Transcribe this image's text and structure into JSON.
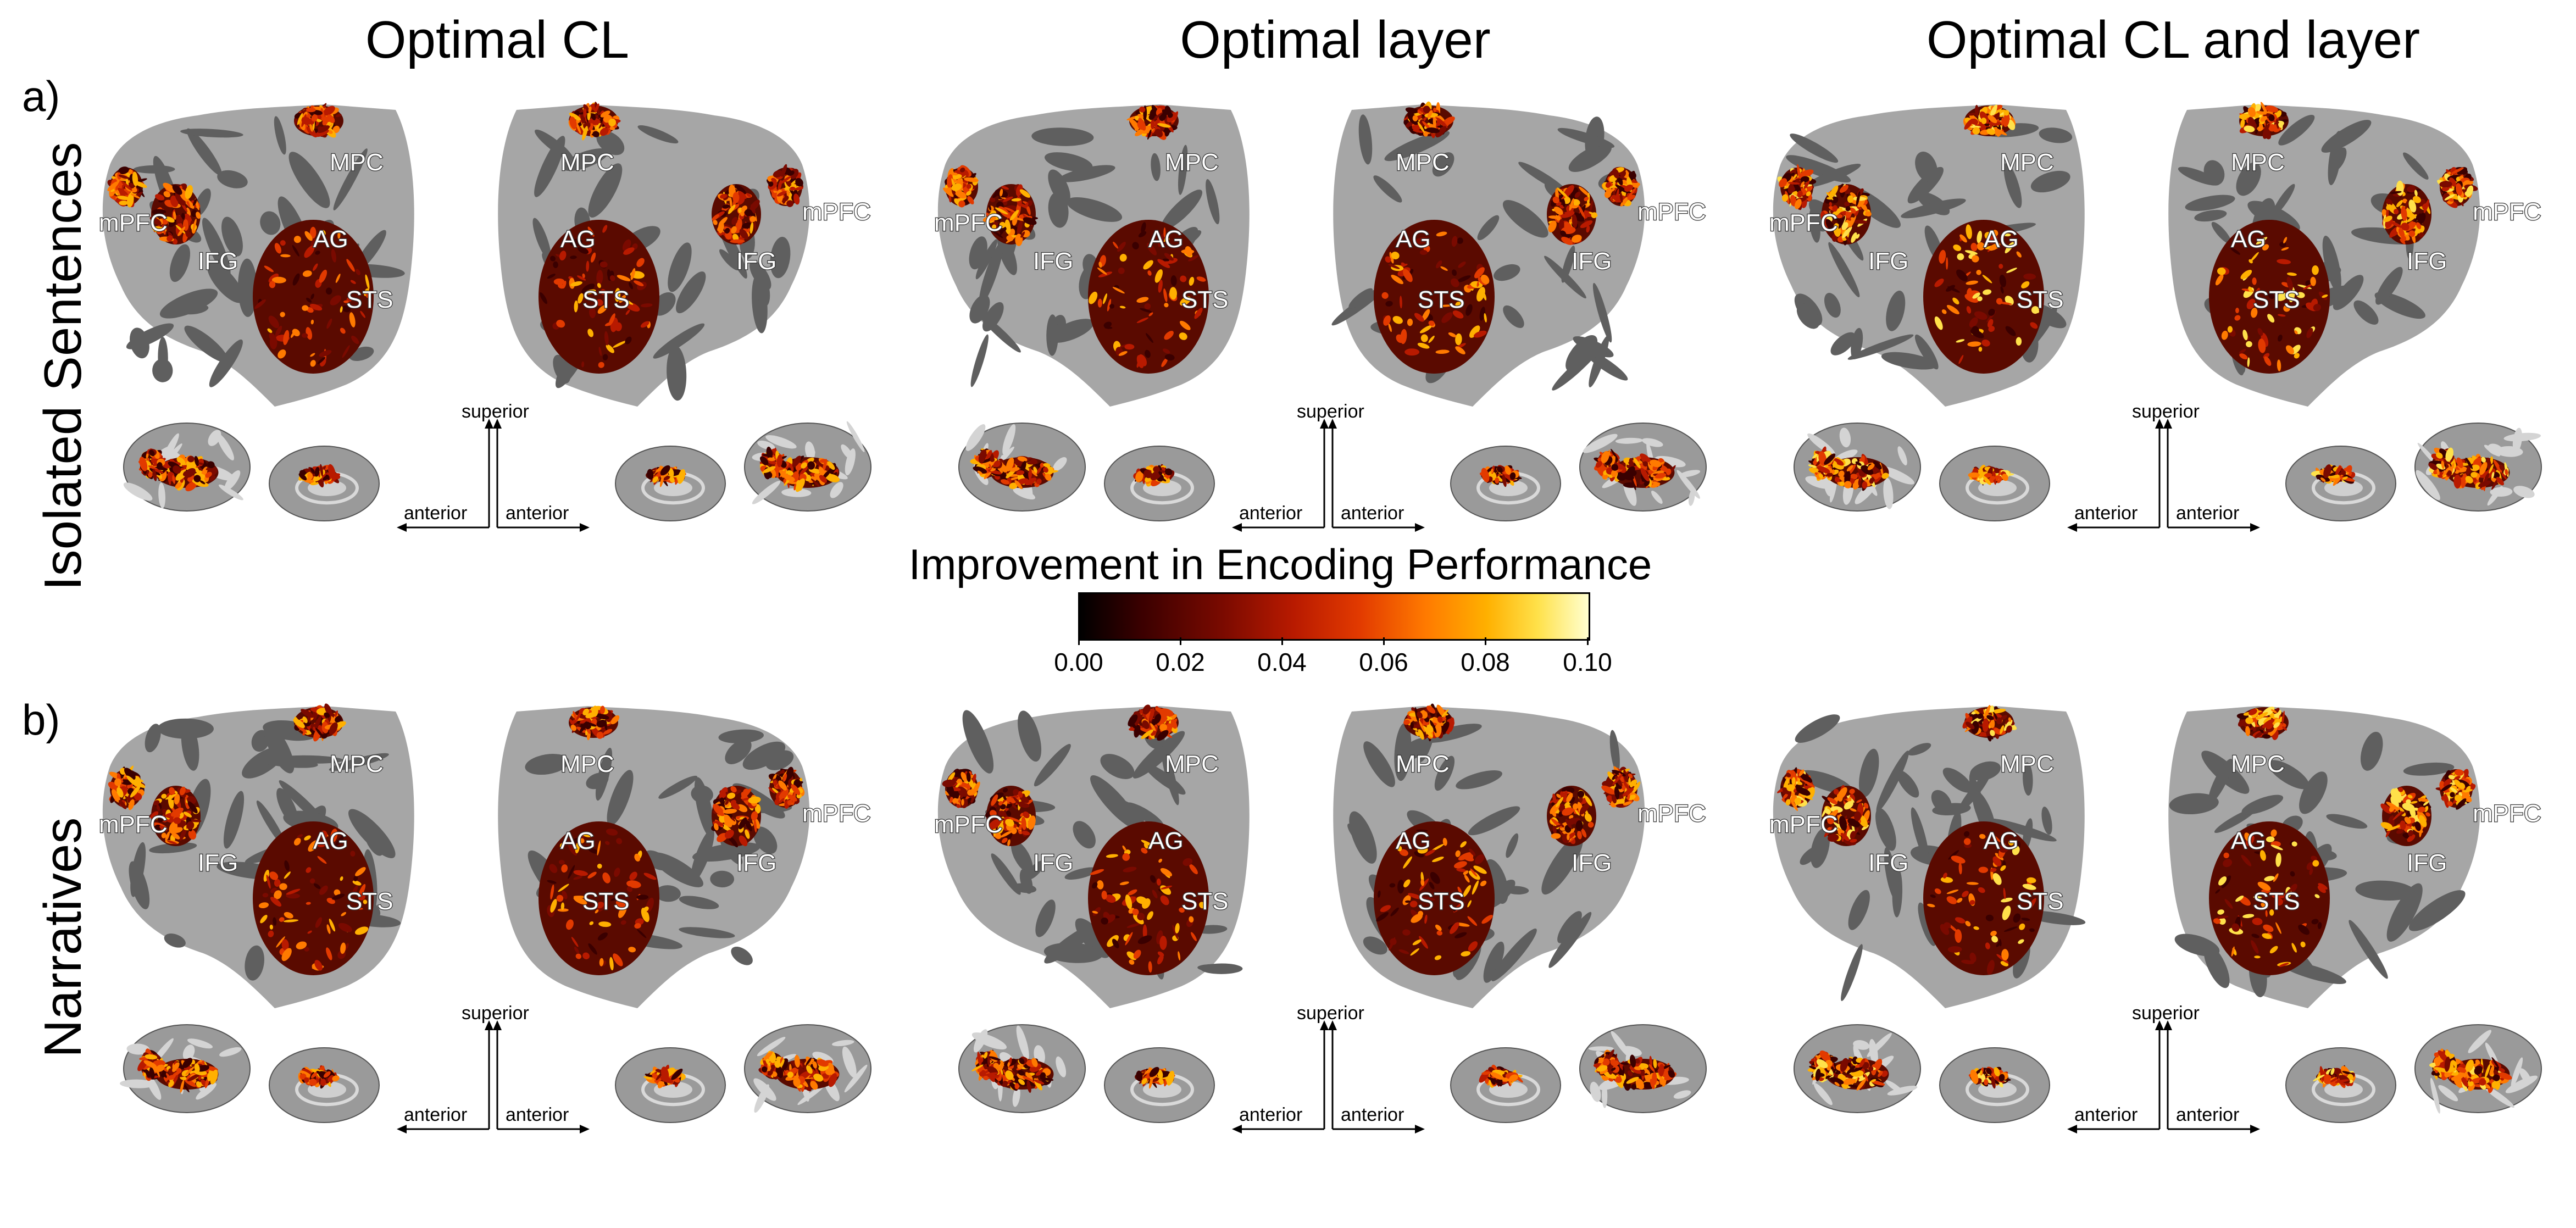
{
  "columns": [
    "Optimal CL",
    "Optimal layer",
    "Optimal CL and layer"
  ],
  "rows": [
    {
      "letter": "a)",
      "label": "Isolated Sentences"
    },
    {
      "letter": "b)",
      "label": "Narratives"
    }
  ],
  "roi_labels": {
    "mpc": "MPC",
    "mpfc": "mPFC",
    "ifg": "IFG",
    "ag": "AG",
    "sts": "STS"
  },
  "orientation": {
    "superior": "superior",
    "anterior": "anterior"
  },
  "colorbar": {
    "title": "Improvement in Encoding Performance (r)",
    "ticks": [
      "0.00",
      "0.02",
      "0.04",
      "0.06",
      "0.08",
      "0.10"
    ],
    "colormap": [
      "#000000",
      "#7a0a00",
      "#e23a00",
      "#ff7a00",
      "#ffe14a",
      "#ffffd0"
    ]
  },
  "colors": {
    "cortex_light": "#a6a6a6",
    "cortex_dark": "#5f5f5f",
    "sulci": "#7a7a7a"
  }
}
